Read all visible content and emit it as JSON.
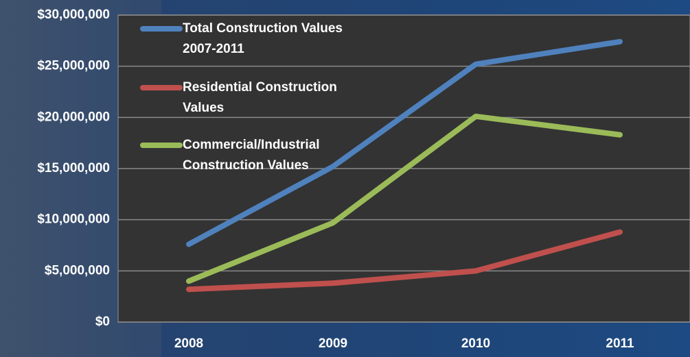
{
  "chart_data": {
    "type": "line",
    "categories": [
      "2008",
      "2009",
      "2010",
      "2011"
    ],
    "series": [
      {
        "name": "Total Construction Values 2007-2011",
        "color": "#4f81bd",
        "values": [
          7600000,
          15200000,
          25200000,
          27400000
        ]
      },
      {
        "name": "Residential Construction Values",
        "color": "#c0504d",
        "values": [
          3200000,
          3800000,
          5000000,
          8800000
        ]
      },
      {
        "name": "Commercial/Industrial Construction Values",
        "color": "#9bbb59",
        "values": [
          4000000,
          9700000,
          20100000,
          18300000
        ]
      }
    ],
    "ylim": [
      0,
      30000000
    ],
    "yticks": [
      {
        "value": 0,
        "label": "$0"
      },
      {
        "value": 5000000,
        "label": "$5,000,000"
      },
      {
        "value": 10000000,
        "label": "$10,000,000"
      },
      {
        "value": 15000000,
        "label": "$15,000,000"
      },
      {
        "value": 20000000,
        "label": "$20,000,000"
      },
      {
        "value": 25000000,
        "label": "$25,000,000"
      },
      {
        "value": 30000000,
        "label": "$30,000,000"
      }
    ],
    "grid": true,
    "legend": "top-left"
  }
}
